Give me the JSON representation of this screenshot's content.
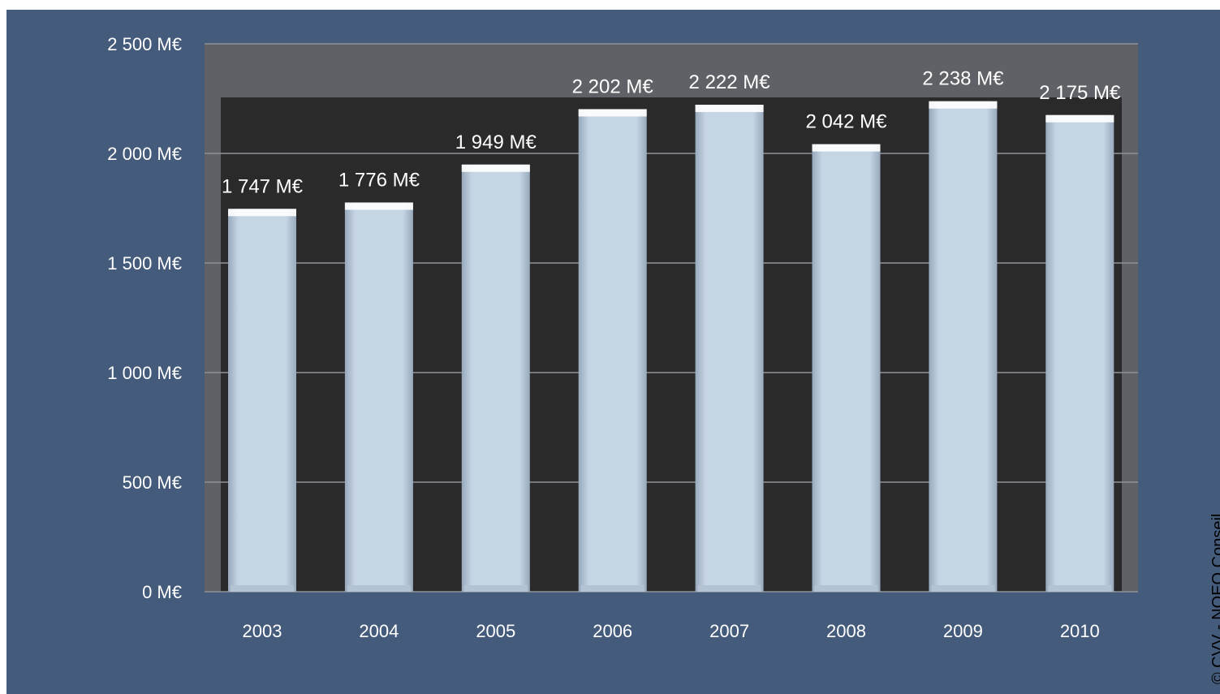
{
  "chart_data": {
    "type": "bar",
    "categories": [
      "2003",
      "2004",
      "2005",
      "2006",
      "2007",
      "2008",
      "2009",
      "2010"
    ],
    "values": [
      1747,
      1776,
      1949,
      2202,
      2222,
      2042,
      2238,
      2175
    ],
    "data_labels": [
      "1 747  M€",
      "1 776  M€",
      "1 949  M€",
      "2 202  M€",
      "2 222  M€",
      "2 042  M€",
      "2 238  M€",
      "2 175  M€"
    ],
    "y_ticks": [
      0,
      500,
      1000,
      1500,
      2000,
      2500
    ],
    "y_tick_labels": [
      "0  M€",
      "500  M€",
      "1 000  M€",
      "1 500  M€",
      "2 000  M€",
      "2 500  M€"
    ],
    "ylim": [
      0,
      2500
    ],
    "grid": true,
    "legend": "none",
    "title": "",
    "xlabel": "",
    "ylabel": "",
    "colors": {
      "background": "#455b7b",
      "back_wall": "#5f6166",
      "inner_wall": "#2a2a2a",
      "bar": "#c3d3e3",
      "text": "#ffffff"
    }
  },
  "credit": "© CVV - NOEO Conseil"
}
